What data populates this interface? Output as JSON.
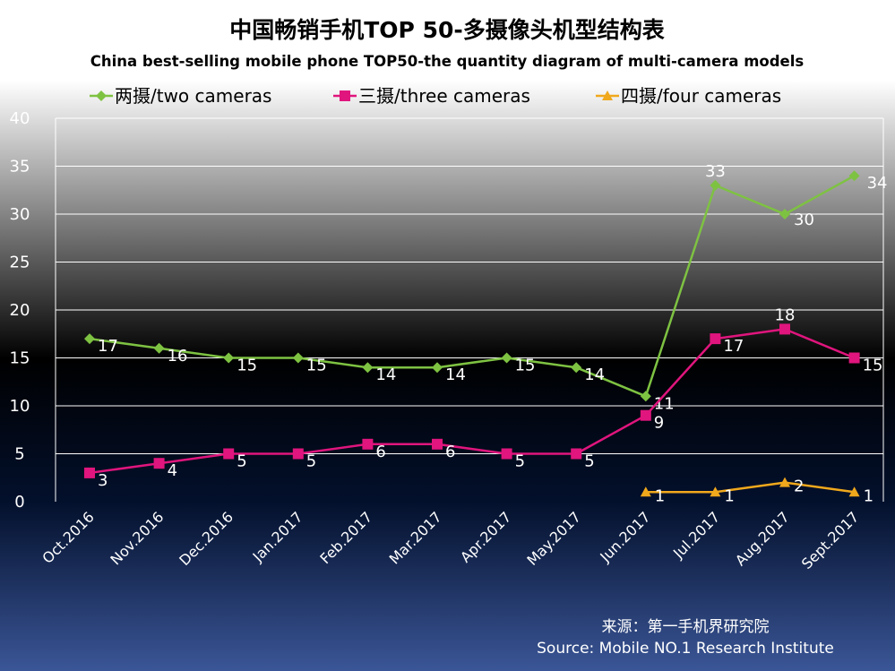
{
  "colors": {
    "two": "#7ec242",
    "three": "#e0157d",
    "four": "#f0a81c",
    "grid": "#ffffff",
    "text_light": "#ffffff",
    "text_dark": "#000000"
  },
  "chart_data": {
    "type": "line",
    "title": "中国畅销手机TOP 50-多摄像头机型结构表",
    "subtitle": "China best-selling mobile phone TOP50-the quantity diagram of multi-camera models",
    "categories": [
      "Oct.2016",
      "Nov.2016",
      "Dec.2016",
      "Jan.2017",
      "Feb.2017",
      "Mar.2017",
      "Apr.2017",
      "May.2017",
      "Jun.2017",
      "Jul.2017",
      "Aug.2017",
      "Sept.2017"
    ],
    "ylim": [
      0,
      40
    ],
    "yticks": [
      "0",
      "5",
      "10",
      "15",
      "20",
      "25",
      "30",
      "35",
      "40"
    ],
    "grid": true,
    "legend_position": "top",
    "series": [
      {
        "name": "两摄/two cameras",
        "marker": "diamond",
        "values": [
          17,
          16,
          15,
          15,
          14,
          14,
          15,
          14,
          11,
          33,
          30,
          34
        ]
      },
      {
        "name": "三摄/three cameras",
        "marker": "square",
        "values": [
          3,
          4,
          5,
          5,
          6,
          6,
          5,
          5,
          9,
          17,
          18,
          15
        ]
      },
      {
        "name": "四摄/four cameras",
        "marker": "triangle",
        "values": [
          null,
          null,
          null,
          null,
          null,
          null,
          null,
          null,
          1,
          1,
          2,
          1
        ]
      }
    ],
    "source_cn": "来源：第一手机界研究院",
    "source_en": "Source: Mobile NO.1 Research Institute"
  }
}
